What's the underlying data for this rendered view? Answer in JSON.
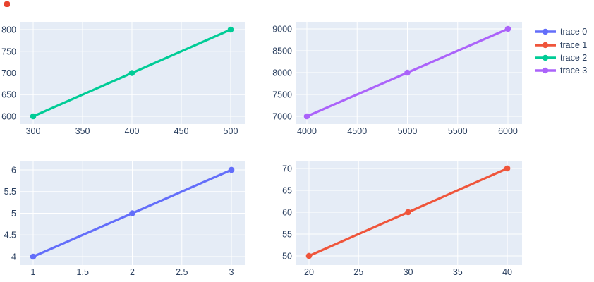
{
  "page": {
    "background": "#ffffff",
    "status_dot_color": "#e8432d"
  },
  "style": {
    "plot_bg": "#E5ECF6",
    "grid_color": "#ffffff",
    "tick_color": "#2a3f5f"
  },
  "legend": {
    "position": "right",
    "items": [
      {
        "label": "trace 0",
        "color": "#636EFA"
      },
      {
        "label": "trace 1",
        "color": "#EF553B"
      },
      {
        "label": "trace 2",
        "color": "#00CC96"
      },
      {
        "label": "trace 3",
        "color": "#AB63FA"
      }
    ]
  },
  "chart_data": [
    {
      "type": "line",
      "subplot": "top-left",
      "series": [
        {
          "name": "trace 2",
          "color": "#00CC96",
          "x": [
            300,
            400,
            500
          ],
          "y": [
            600,
            700,
            800
          ]
        }
      ],
      "xticks": [
        300,
        350,
        400,
        450,
        500
      ],
      "yticks": [
        600,
        650,
        700,
        750,
        800
      ],
      "xlim": [
        286.4,
        514.3
      ],
      "ylim": [
        582.1,
        817.9
      ],
      "grid": true,
      "title": "",
      "xlabel": "",
      "ylabel": ""
    },
    {
      "type": "line",
      "subplot": "top-right",
      "series": [
        {
          "name": "trace 3",
          "color": "#AB63FA",
          "x": [
            4000,
            5000,
            6000
          ],
          "y": [
            7000,
            8000,
            9000
          ]
        }
      ],
      "xticks": [
        4000,
        4500,
        5000,
        5500,
        6000
      ],
      "yticks": [
        7000,
        7500,
        8000,
        8500,
        9000
      ],
      "xlim": [
        3887.7,
        6140.4
      ],
      "ylim": [
        6822.6,
        9161.3
      ],
      "grid": true,
      "title": "",
      "xlabel": "",
      "ylabel": ""
    },
    {
      "type": "line",
      "subplot": "bottom-left",
      "series": [
        {
          "name": "trace 0",
          "color": "#636EFA",
          "x": [
            1,
            2,
            3
          ],
          "y": [
            4,
            5,
            6
          ]
        }
      ],
      "xticks": [
        1,
        1.5,
        2,
        2.5,
        3
      ],
      "yticks": [
        4,
        4.5,
        5,
        5.5,
        6
      ],
      "xlim": [
        0.865,
        3.135
      ],
      "ylim": [
        3.805,
        6.211
      ],
      "grid": true,
      "title": "",
      "xlabel": "",
      "ylabel": ""
    },
    {
      "type": "line",
      "subplot": "bottom-right",
      "series": [
        {
          "name": "trace 1",
          "color": "#EF553B",
          "x": [
            20,
            30,
            40
          ],
          "y": [
            50,
            60,
            70
          ]
        }
      ],
      "xticks": [
        20,
        25,
        30,
        35,
        40
      ],
      "yticks": [
        50,
        55,
        60,
        65,
        70
      ],
      "xlim": [
        18.65,
        41.49
      ],
      "ylim": [
        47.9,
        71.77
      ],
      "grid": true,
      "title": "",
      "xlabel": "",
      "ylabel": ""
    }
  ]
}
